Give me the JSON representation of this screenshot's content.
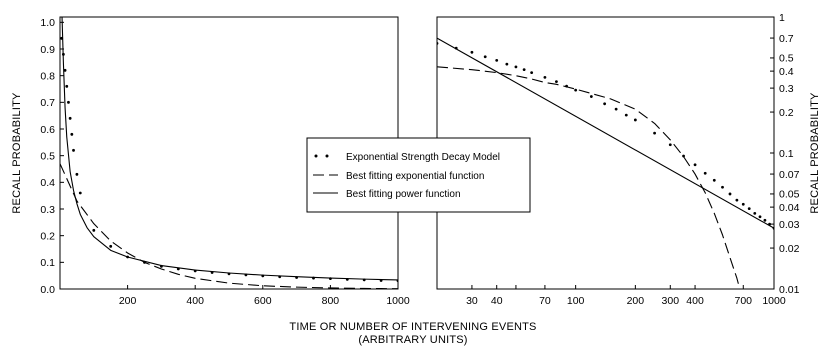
{
  "chart_data": [
    {
      "type": "line",
      "panel": "left",
      "xscale": "linear",
      "yscale": "linear",
      "xlim": [
        0,
        1000
      ],
      "ylim": [
        0,
        1.02
      ],
      "xticks": [
        200,
        400,
        600,
        800,
        1000
      ],
      "xtick_labels": [
        "200",
        "400",
        "600",
        "800",
        "1000"
      ],
      "yticks": [
        0,
        0.1,
        0.2,
        0.3,
        0.4,
        0.5,
        0.6,
        0.7,
        0.8,
        0.9,
        1.0
      ],
      "ytick_labels": [
        "0.0",
        "0.1",
        "0.2",
        "0.3",
        "0.4",
        "0.5",
        "0.6",
        "0.7",
        "0.8",
        "0.9",
        "1.0"
      ],
      "ylabel": "RECALL PROBABILITY",
      "series": [
        {
          "name": "Exponential Strength Decay Model",
          "style": "dots",
          "x": [
            5,
            10,
            15,
            20,
            25,
            30,
            35,
            40,
            50,
            60,
            100,
            150,
            200,
            250,
            300,
            350,
            400,
            450,
            500,
            550,
            600,
            650,
            700,
            750,
            800,
            850,
            900,
            950,
            1000
          ],
          "y": [
            0.94,
            0.88,
            0.82,
            0.76,
            0.7,
            0.64,
            0.58,
            0.52,
            0.43,
            0.36,
            0.22,
            0.16,
            0.12,
            0.1,
            0.085,
            0.075,
            0.068,
            0.062,
            0.057,
            0.053,
            0.049,
            0.046,
            0.043,
            0.041,
            0.039,
            0.036,
            0.034,
            0.032,
            0.031
          ]
        },
        {
          "name": "Best fitting exponential function",
          "style": "dashed",
          "x": [
            0,
            50,
            100,
            150,
            200,
            250,
            300,
            350,
            400,
            500,
            600,
            700,
            800,
            900,
            1000
          ],
          "y": [
            0.47,
            0.33,
            0.245,
            0.18,
            0.135,
            0.1,
            0.075,
            0.055,
            0.04,
            0.022,
            0.012,
            0.007,
            0.004,
            0.002,
            0.001
          ]
        },
        {
          "name": "Best fitting power function",
          "style": "solid",
          "x": [
            6,
            10,
            15,
            20,
            30,
            40,
            50,
            60,
            80,
            100,
            150,
            200,
            300,
            400,
            500,
            600,
            700,
            800,
            900,
            1000
          ],
          "y": [
            1.02,
            0.85,
            0.68,
            0.57,
            0.44,
            0.37,
            0.32,
            0.28,
            0.23,
            0.196,
            0.145,
            0.12,
            0.088,
            0.071,
            0.06,
            0.052,
            0.046,
            0.041,
            0.037,
            0.034
          ]
        }
      ]
    },
    {
      "type": "line",
      "panel": "right",
      "xscale": "log",
      "yscale": "log",
      "xlim": [
        20,
        1000
      ],
      "ylim": [
        0.01,
        1
      ],
      "xticks": [
        30,
        40,
        50,
        70,
        100,
        200,
        300,
        400,
        700,
        1000
      ],
      "xtick_labels": [
        "30",
        "40",
        "",
        "70",
        "100",
        "200",
        "300",
        "400",
        "700",
        "1000"
      ],
      "yticks": [
        0.01,
        0.02,
        0.03,
        0.04,
        0.05,
        0.07,
        0.1,
        0.2,
        0.3,
        0.4,
        0.5,
        0.7,
        1
      ],
      "ytick_labels": [
        "0.01",
        "0.02",
        "0.03",
        "0.04",
        "0.05",
        "0.07",
        "0.1",
        "0.2",
        "0.3",
        "0.4",
        "0.5",
        "0.7",
        "1"
      ],
      "ylabel": "RECALL PROBABILITY",
      "series": [
        {
          "name": "Exponential Strength Decay Model",
          "style": "dots",
          "x": [
            20,
            25,
            30,
            35,
            40,
            45,
            50,
            55,
            60,
            70,
            80,
            90,
            100,
            120,
            140,
            160,
            180,
            200,
            250,
            300,
            350,
            400,
            450,
            500,
            550,
            600,
            650,
            700,
            750,
            800,
            850,
            900,
            950,
            1000
          ],
          "y": [
            0.64,
            0.59,
            0.55,
            0.51,
            0.48,
            0.45,
            0.43,
            0.41,
            0.39,
            0.36,
            0.335,
            0.31,
            0.29,
            0.26,
            0.23,
            0.21,
            0.19,
            0.175,
            0.14,
            0.115,
            0.095,
            0.082,
            0.071,
            0.063,
            0.056,
            0.05,
            0.045,
            0.042,
            0.039,
            0.036,
            0.034,
            0.032,
            0.03,
            0.028
          ]
        },
        {
          "name": "Best fitting exponential function",
          "style": "dashed",
          "x": [
            20,
            30,
            40,
            50,
            60,
            70,
            80,
            100,
            150,
            200,
            250,
            300,
            350,
            400,
            450,
            500,
            550,
            600,
            650,
            700
          ],
          "y": [
            0.43,
            0.41,
            0.39,
            0.37,
            0.35,
            0.33,
            0.32,
            0.295,
            0.25,
            0.21,
            0.165,
            0.125,
            0.094,
            0.07,
            0.051,
            0.036,
            0.025,
            0.017,
            0.012,
            0.008
          ]
        },
        {
          "name": "Best fitting power function",
          "style": "solid",
          "x": [
            20,
            1000
          ],
          "y": [
            0.7,
            0.028
          ]
        }
      ]
    }
  ],
  "legend": {
    "placement": "center",
    "entries": [
      {
        "label": "Exponential Strength Decay Model",
        "style": "dots"
      },
      {
        "label": "Best fitting exponential function",
        "style": "dashed"
      },
      {
        "label": "Best fitting power function",
        "style": "solid"
      }
    ]
  },
  "xlabel_line1": "TIME  OR  NUMBER OF INTERVENING EVENTS",
  "xlabel_line2": "(ARBITRARY UNITS)"
}
